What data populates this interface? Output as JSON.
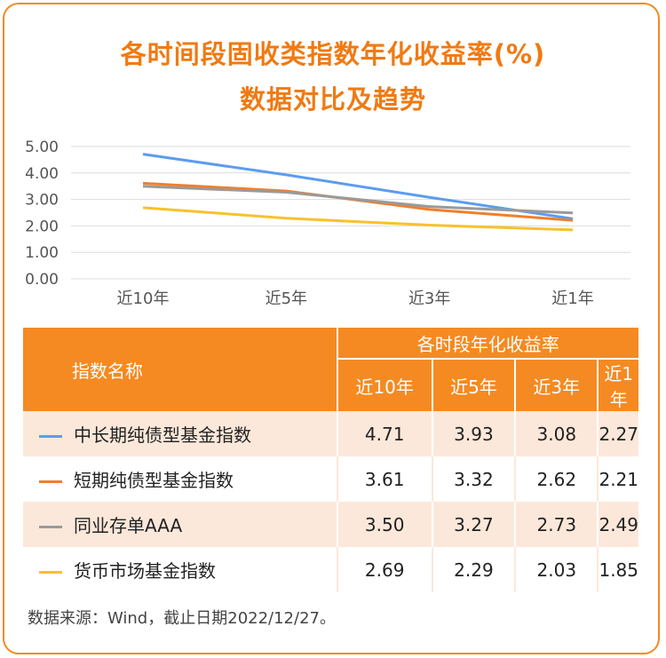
{
  "title_line1": "各时间段固收类指数年化收益率(%)",
  "title_line2": "数据对比及趋势",
  "chart_data": {
    "type": "line",
    "categories": [
      "近10年",
      "近5年",
      "近3年",
      "近1年"
    ],
    "ylim": [
      0,
      5
    ],
    "yticks": [
      "0.00",
      "1.00",
      "2.00",
      "3.00",
      "4.00",
      "5.00"
    ],
    "grid": true,
    "series": [
      {
        "name": "中长期纯债型基金指数",
        "color": "#5b9cf0",
        "values": [
          4.71,
          3.93,
          3.08,
          2.27
        ]
      },
      {
        "name": "短期纯债型基金指数",
        "color": "#f07f2a",
        "values": [
          3.61,
          3.32,
          2.62,
          2.21
        ]
      },
      {
        "name": "同业存单AAA",
        "color": "#9a9a9a",
        "values": [
          3.5,
          3.27,
          2.73,
          2.49
        ]
      },
      {
        "name": "货币市场基金指数",
        "color": "#f8c12c",
        "values": [
          2.69,
          2.29,
          2.03,
          1.85
        ]
      }
    ]
  },
  "table": {
    "name_header": "指数名称",
    "group_header": "各时段年化收益率",
    "columns": [
      "近10年",
      "近5年",
      "近3年",
      "近1年"
    ],
    "rows": [
      {
        "name": "中长期纯债型基金指数",
        "color": "#5b9cf0",
        "values": [
          "4.71",
          "3.93",
          "3.08",
          "2.27"
        ]
      },
      {
        "name": "短期纯债型基金指数",
        "color": "#f07f2a",
        "values": [
          "3.61",
          "3.32",
          "2.62",
          "2.21"
        ]
      },
      {
        "name": "同业存单AAA",
        "color": "#9a9a9a",
        "values": [
          "3.50",
          "3.27",
          "2.73",
          "2.49"
        ]
      },
      {
        "name": "货币市场基金指数",
        "color": "#f8c12c",
        "values": [
          "2.69",
          "2.29",
          "2.03",
          "1.85"
        ]
      }
    ]
  },
  "source_note": "数据来源：Wind，截止日期2022/12/27。"
}
